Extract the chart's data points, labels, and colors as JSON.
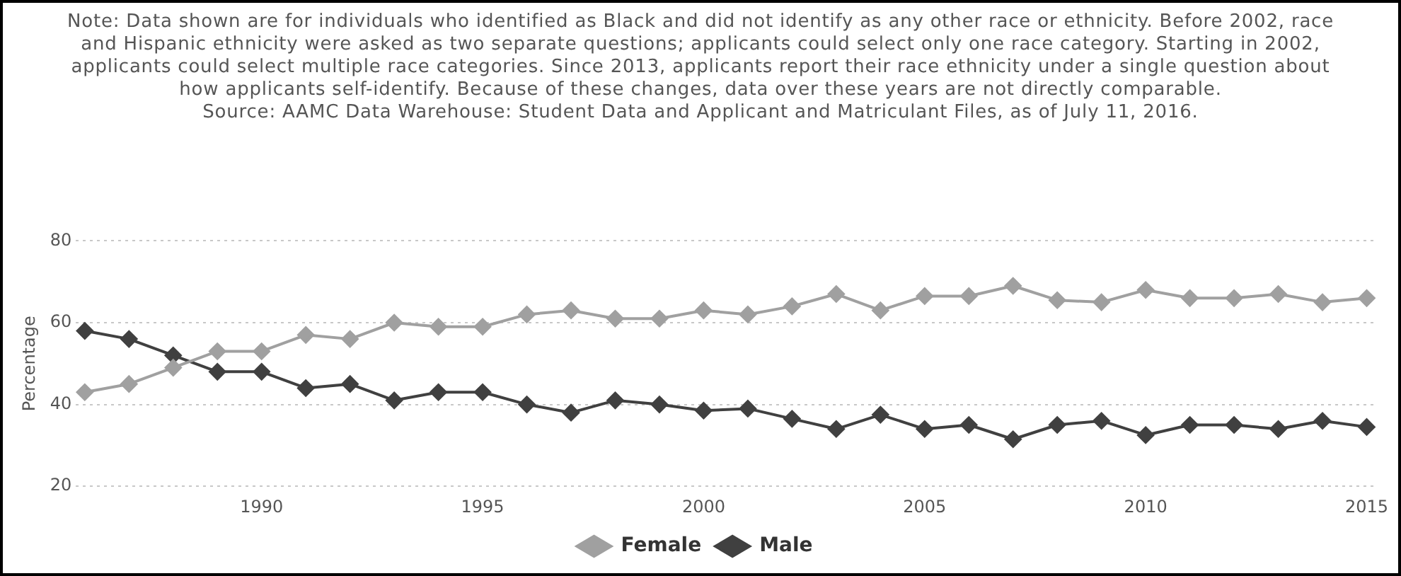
{
  "chart_data": {
    "type": "line",
    "ylabel": "Percentage",
    "annotations": [
      "Note: Data shown are for individuals who identified as Black and did not identify as any other race or ethnicity. Before 2002, race and Hispanic ethnicity were asked as two separate questions; applicants could select only one race category. Starting in 2002, applicants could select multiple race categories. Since 2013, applicants report their race ethnicity under a single question about how applicants self-identify. Because of these changes, data over these years are not directly comparable.",
      "Source: AAMC Data Warehouse: Student Data and Applicant and Matriculant Files, as of July 11, 2016."
    ],
    "x": [
      1986,
      1987,
      1988,
      1989,
      1990,
      1991,
      1992,
      1993,
      1994,
      1995,
      1996,
      1997,
      1998,
      1999,
      2000,
      2001,
      2002,
      2003,
      2004,
      2005,
      2006,
      2007,
      2008,
      2009,
      2010,
      2011,
      2012,
      2013,
      2014,
      2015
    ],
    "series": [
      {
        "name": "Female",
        "color": "#a0a0a0",
        "values": [
          43,
          45,
          49,
          53,
          53,
          57,
          56,
          60,
          59,
          59,
          62,
          63,
          61,
          61,
          63,
          62,
          64,
          67,
          63,
          66.5,
          66.5,
          69,
          65.5,
          65,
          68,
          66,
          66,
          67,
          65,
          66
        ]
      },
      {
        "name": "Male",
        "color": "#404040",
        "values": [
          58,
          56,
          52,
          48,
          48,
          44,
          45,
          41,
          43,
          43,
          40,
          38,
          41,
          40,
          38.5,
          39,
          36.5,
          34,
          37.5,
          34,
          35,
          31.5,
          35,
          36,
          32.5,
          35,
          35,
          34,
          36,
          34.5
        ]
      }
    ],
    "xlim": [
      1985.8,
      2015.2
    ],
    "xticks": [
      1990,
      1995,
      2000,
      2005,
      2010,
      2015
    ],
    "ylim": [
      20,
      80
    ],
    "yticks": [
      20,
      40,
      60,
      80
    ],
    "grid": "y",
    "legend": "bottom",
    "marker": "diamond",
    "line_style": "solid"
  }
}
